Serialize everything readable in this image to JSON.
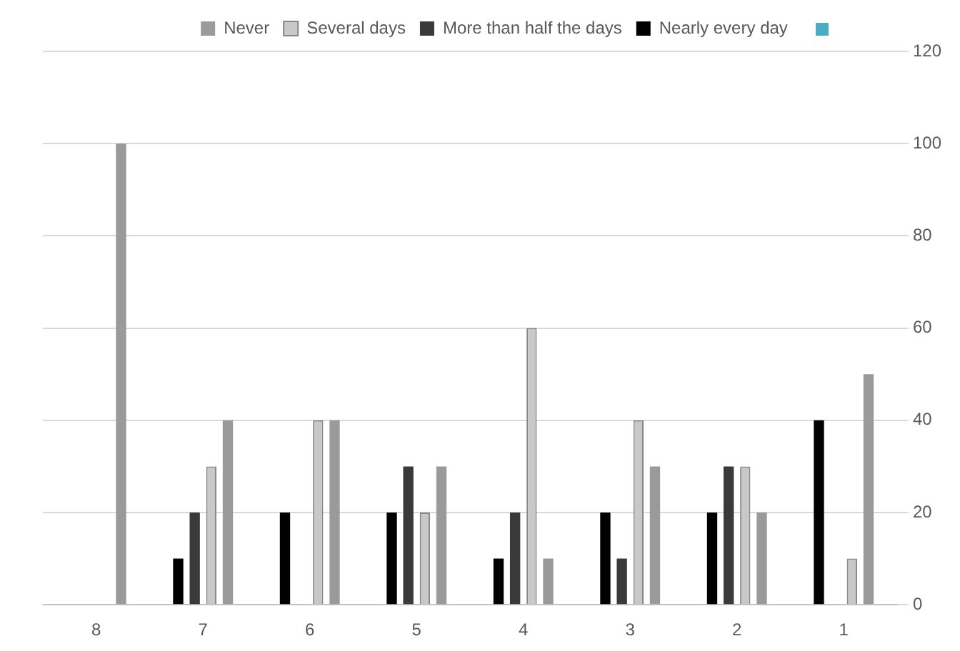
{
  "chart_data": {
    "type": "bar",
    "categories": [
      "8",
      "7",
      "6",
      "5",
      "4",
      "3",
      "2",
      "1"
    ],
    "series": [
      {
        "name": "Nearly every day",
        "color": "#000000",
        "values": [
          null,
          10,
          20,
          20,
          10,
          20,
          20,
          40
        ]
      },
      {
        "name": "More than half the days",
        "color": "#3a3a3a",
        "values": [
          null,
          20,
          null,
          30,
          20,
          10,
          30,
          null
        ]
      },
      {
        "name": "Several days",
        "color": "#c8c8c8",
        "values": [
          null,
          30,
          40,
          20,
          60,
          40,
          30,
          10
        ]
      },
      {
        "name": "Never",
        "color": "#9a9a9a",
        "values": [
          100,
          40,
          40,
          30,
          10,
          30,
          20,
          50
        ]
      }
    ],
    "ylim": [
      0,
      120
    ],
    "yticks": [
      0,
      20,
      40,
      60,
      80,
      100,
      120
    ],
    "grid": "y",
    "legend": "top"
  }
}
